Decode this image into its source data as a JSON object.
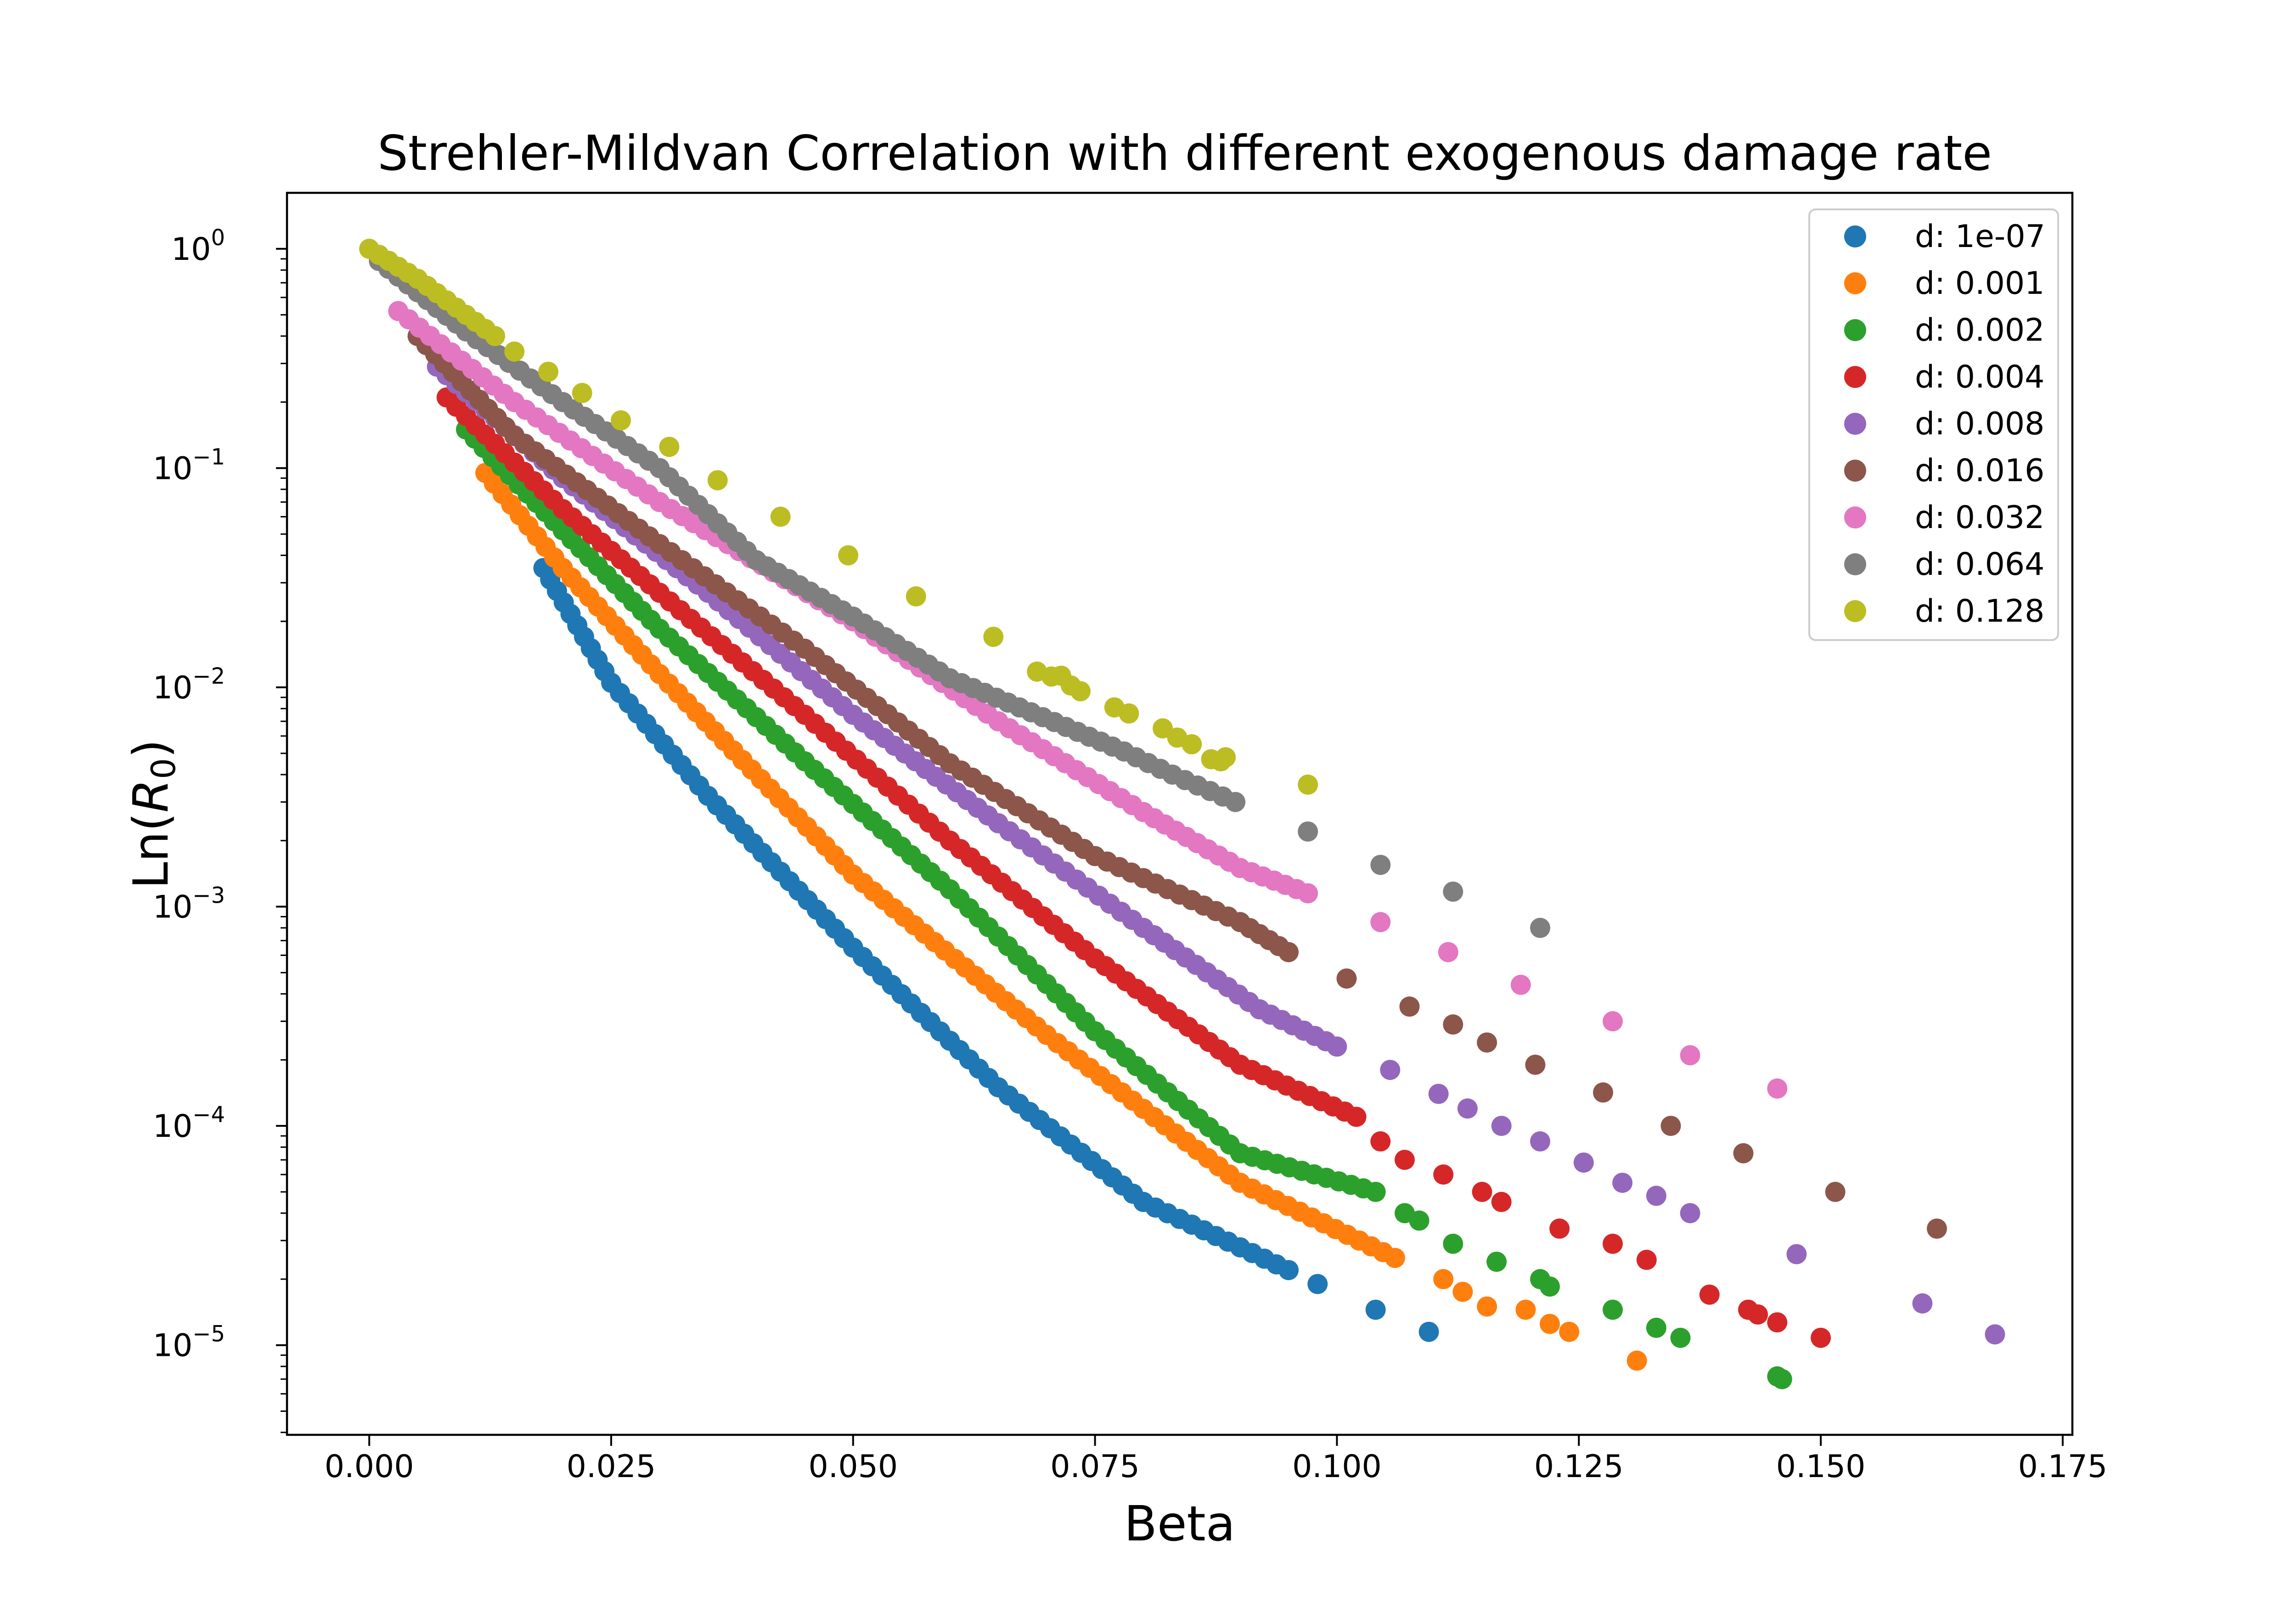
{
  "chart_data": {
    "type": "scatter",
    "title": "Strehler-Mildvan Correlation with different exogenous damage rate",
    "xlabel": "Beta",
    "ylabel_main": "Ln(",
    "ylabel_italic": "R",
    "ylabel_sub": "0",
    "ylabel_close": ")",
    "xlim": [
      -0.0085,
      0.176
    ],
    "ylim": [
      3.9e-06,
      1.8
    ],
    "y_scale": "log",
    "grid": false,
    "legend_position": "top-right",
    "x_ticks": [
      {
        "value": 0.0,
        "label": "0.000"
      },
      {
        "value": 0.025,
        "label": "0.025"
      },
      {
        "value": 0.05,
        "label": "0.050"
      },
      {
        "value": 0.075,
        "label": "0.075"
      },
      {
        "value": 0.1,
        "label": "0.100"
      },
      {
        "value": 0.125,
        "label": "0.125"
      },
      {
        "value": 0.15,
        "label": "0.150"
      },
      {
        "value": 0.175,
        "label": "0.175"
      }
    ],
    "y_ticks": [
      {
        "value": 1,
        "base": "10",
        "exp": "0"
      },
      {
        "value": 0.1,
        "base": "10",
        "exp": "−1"
      },
      {
        "value": 0.01,
        "base": "10",
        "exp": "−2"
      },
      {
        "value": 0.001,
        "base": "10",
        "exp": "−3"
      },
      {
        "value": 0.0001,
        "base": "10",
        "exp": "−4"
      },
      {
        "value": 1e-05,
        "base": "10",
        "exp": "−5"
      }
    ],
    "series": [
      {
        "name": "d: 1e-07",
        "color": "#1f77b4",
        "curve": [
          [
            0.018,
            0.035
          ],
          [
            0.025,
            0.0105
          ],
          [
            0.035,
            0.0032
          ],
          [
            0.05,
            0.00065
          ],
          [
            0.065,
            0.00015
          ],
          [
            0.08,
            4.5e-05
          ],
          [
            0.095,
            2.2e-05
          ]
        ],
        "outliers": [
          [
            0.098,
            1.9e-05
          ],
          [
            0.104,
            1.45e-05
          ],
          [
            0.1095,
            1.15e-05
          ]
        ]
      },
      {
        "name": "d: 0.001",
        "color": "#ff7f0e",
        "curve": [
          [
            0.012,
            0.095
          ],
          [
            0.02,
            0.035
          ],
          [
            0.03,
            0.0115
          ],
          [
            0.05,
            0.0014
          ],
          [
            0.07,
            0.00026
          ],
          [
            0.09,
            5.5e-05
          ],
          [
            0.106,
            2.5e-05
          ]
        ],
        "outliers": [
          [
            0.111,
            2e-05
          ],
          [
            0.113,
            1.75e-05
          ],
          [
            0.1155,
            1.5e-05
          ],
          [
            0.1195,
            1.45e-05
          ],
          [
            0.122,
            1.25e-05
          ],
          [
            0.124,
            1.15e-05
          ],
          [
            0.131,
            8.5e-06
          ]
        ]
      },
      {
        "name": "d: 0.002",
        "color": "#2ca02c",
        "curve": [
          [
            0.01,
            0.15
          ],
          [
            0.02,
            0.052
          ],
          [
            0.03,
            0.0185
          ],
          [
            0.045,
            0.0046
          ],
          [
            0.06,
            0.0012
          ],
          [
            0.075,
            0.00027
          ],
          [
            0.09,
            7.5e-05
          ],
          [
            0.104,
            5e-05
          ]
        ],
        "outliers": [
          [
            0.107,
            4e-05
          ],
          [
            0.1085,
            3.7e-05
          ],
          [
            0.112,
            2.9e-05
          ],
          [
            0.1165,
            2.4e-05
          ],
          [
            0.121,
            2e-05
          ],
          [
            0.122,
            1.85e-05
          ],
          [
            0.1285,
            1.45e-05
          ],
          [
            0.133,
            1.2e-05
          ],
          [
            0.1355,
            1.08e-05
          ],
          [
            0.1455,
            7.2e-06
          ],
          [
            0.146,
            7e-06
          ]
        ]
      },
      {
        "name": "d: 0.004",
        "color": "#d62728",
        "curve": [
          [
            0.008,
            0.21
          ],
          [
            0.02,
            0.065
          ],
          [
            0.03,
            0.027
          ],
          [
            0.045,
            0.0075
          ],
          [
            0.06,
            0.002
          ],
          [
            0.075,
            0.00058
          ],
          [
            0.09,
            0.00019
          ],
          [
            0.102,
            0.00011
          ]
        ],
        "outliers": [
          [
            0.1045,
            8.5e-05
          ],
          [
            0.107,
            7e-05
          ],
          [
            0.111,
            6e-05
          ],
          [
            0.115,
            5e-05
          ],
          [
            0.117,
            4.5e-05
          ],
          [
            0.123,
            3.4e-05
          ],
          [
            0.1285,
            2.9e-05
          ],
          [
            0.132,
            2.45e-05
          ],
          [
            0.1385,
            1.7e-05
          ],
          [
            0.1425,
            1.45e-05
          ],
          [
            0.1435,
            1.38e-05
          ],
          [
            0.1455,
            1.27e-05
          ],
          [
            0.15,
            1.08e-05
          ]
        ]
      },
      {
        "name": "d: 0.008",
        "color": "#9467bd",
        "curve": [
          [
            0.007,
            0.29
          ],
          [
            0.02,
            0.09
          ],
          [
            0.035,
            0.027
          ],
          [
            0.05,
            0.0075
          ],
          [
            0.065,
            0.0024
          ],
          [
            0.08,
            0.0008
          ],
          [
            0.092,
            0.00034
          ],
          [
            0.1,
            0.00023
          ]
        ],
        "outliers": [
          [
            0.1055,
            0.00018
          ],
          [
            0.1105,
            0.00014
          ],
          [
            0.1135,
            0.00012
          ],
          [
            0.117,
            0.0001
          ],
          [
            0.121,
            8.5e-05
          ],
          [
            0.1255,
            6.8e-05
          ],
          [
            0.1295,
            5.5e-05
          ],
          [
            0.133,
            4.8e-05
          ],
          [
            0.1365,
            4e-05
          ],
          [
            0.1475,
            2.6e-05
          ],
          [
            0.1605,
            1.55e-05
          ],
          [
            0.168,
            1.12e-05
          ]
        ]
      },
      {
        "name": "d: 0.016",
        "color": "#8c564b",
        "curve": [
          [
            0.005,
            0.4
          ],
          [
            0.015,
            0.14
          ],
          [
            0.03,
            0.045
          ],
          [
            0.045,
            0.015
          ],
          [
            0.06,
            0.0045
          ],
          [
            0.075,
            0.0017
          ],
          [
            0.09,
            0.00085
          ],
          [
            0.095,
            0.00062
          ]
        ],
        "outliers": [
          [
            0.101,
            0.00047
          ],
          [
            0.1075,
            0.00035
          ],
          [
            0.112,
            0.00029
          ],
          [
            0.1155,
            0.00024
          ],
          [
            0.1205,
            0.00019
          ],
          [
            0.1275,
            0.000142
          ],
          [
            0.1345,
            0.0001
          ],
          [
            0.142,
            7.5e-05
          ],
          [
            0.1515,
            5e-05
          ],
          [
            0.162,
            3.4e-05
          ]
        ]
      },
      {
        "name": "d: 0.032",
        "color": "#e377c2",
        "curve": [
          [
            0.003,
            0.52
          ],
          [
            0.015,
            0.2
          ],
          [
            0.03,
            0.07
          ],
          [
            0.05,
            0.02
          ],
          [
            0.065,
            0.007
          ],
          [
            0.08,
            0.0027
          ],
          [
            0.09,
            0.0015
          ],
          [
            0.097,
            0.00115
          ]
        ],
        "outliers": [
          [
            0.1045,
            0.00085
          ],
          [
            0.1115,
            0.00062
          ],
          [
            0.119,
            0.00044
          ],
          [
            0.1285,
            0.0003
          ],
          [
            0.1365,
            0.00021
          ],
          [
            0.1455,
            0.000148
          ]
        ]
      },
      {
        "name": "d: 0.064",
        "color": "#7f7f7f",
        "curve": [
          [
            0.001,
            0.88
          ],
          [
            0.01,
            0.42
          ],
          [
            0.02,
            0.2
          ],
          [
            0.03,
            0.1
          ],
          [
            0.04,
            0.038
          ],
          [
            0.05,
            0.021
          ],
          [
            0.06,
            0.011
          ],
          [
            0.072,
            0.0066
          ],
          [
            0.078,
            0.0051
          ],
          [
            0.083,
            0.004
          ],
          [
            0.0895,
            0.003
          ]
        ],
        "outliers": [
          [
            0.097,
            0.0022
          ],
          [
            0.1045,
            0.00155
          ],
          [
            0.112,
            0.00117
          ],
          [
            0.121,
            0.0008
          ]
        ]
      },
      {
        "name": "d: 0.128",
        "color": "#bcbd22",
        "curve": [
          [
            0.0,
            1.0
          ],
          [
            0.005,
            0.73
          ],
          [
            0.01,
            0.5
          ],
          [
            0.013,
            0.4
          ]
        ],
        "outliers": [
          [
            0.015,
            0.34
          ],
          [
            0.0185,
            0.275
          ],
          [
            0.022,
            0.22
          ],
          [
            0.026,
            0.165
          ],
          [
            0.031,
            0.125
          ],
          [
            0.036,
            0.088
          ],
          [
            0.0425,
            0.06
          ],
          [
            0.0495,
            0.04
          ],
          [
            0.0565,
            0.026
          ],
          [
            0.0645,
            0.017
          ],
          [
            0.069,
            0.0118
          ],
          [
            0.0705,
            0.0112
          ],
          [
            0.0715,
            0.0113
          ],
          [
            0.0725,
            0.0102
          ],
          [
            0.0735,
            0.0096
          ],
          [
            0.077,
            0.0081
          ],
          [
            0.0785,
            0.0076
          ],
          [
            0.082,
            0.0065
          ],
          [
            0.0835,
            0.0059
          ],
          [
            0.085,
            0.0055
          ],
          [
            0.087,
            0.0047
          ],
          [
            0.088,
            0.0046
          ],
          [
            0.0885,
            0.0048
          ],
          [
            0.097,
            0.0036
          ]
        ]
      }
    ]
  }
}
